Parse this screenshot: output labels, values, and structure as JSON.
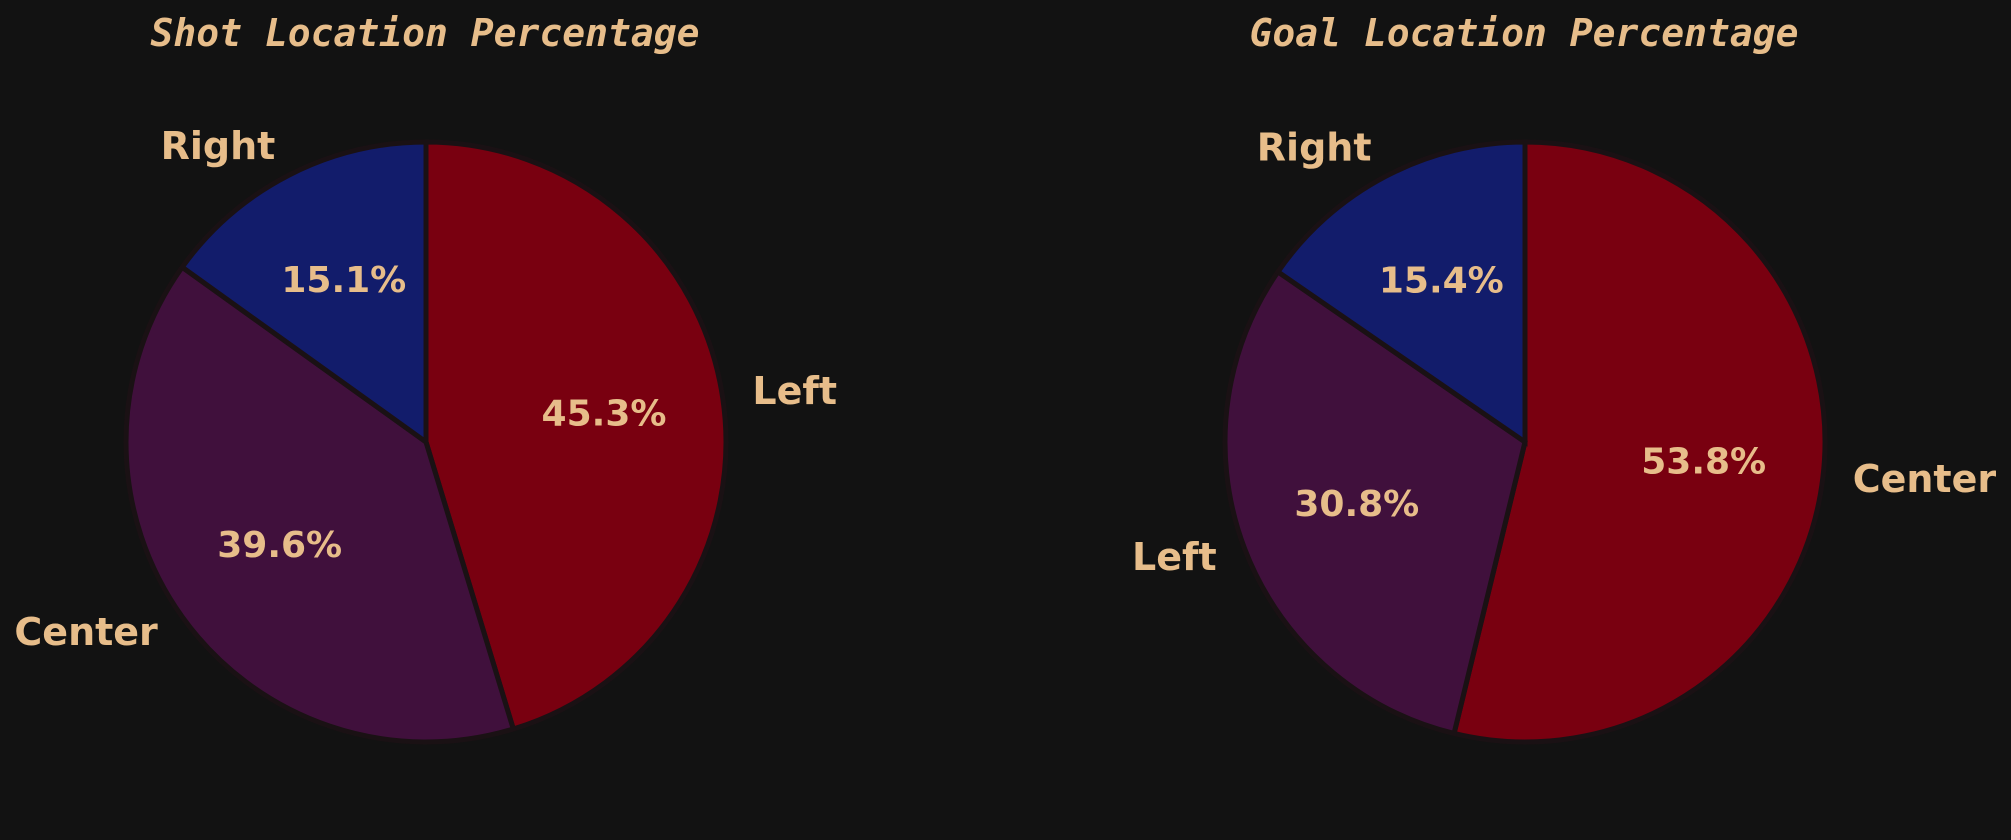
{
  "colors": {
    "background": "#121212",
    "text": "#e7bd8a",
    "edge": "#1a1114"
  },
  "chart_data": [
    {
      "type": "pie",
      "title": "Shot Location Percentage",
      "slices": [
        {
          "label": "Left",
          "value": 45.3,
          "pct_label": "45.3%",
          "color": "#790010"
        },
        {
          "label": "Center",
          "value": 39.6,
          "pct_label": "39.6%",
          "color": "#40103c"
        },
        {
          "label": "Right",
          "value": 15.1,
          "pct_label": "15.1%",
          "color": "#121c6b"
        }
      ]
    },
    {
      "type": "pie",
      "title": "Goal Location Percentage",
      "slices": [
        {
          "label": "Center",
          "value": 53.8,
          "pct_label": "53.8%",
          "color": "#790010"
        },
        {
          "label": "Left",
          "value": 30.8,
          "pct_label": "30.8%",
          "color": "#40103c"
        },
        {
          "label": "Right",
          "value": 15.4,
          "pct_label": "15.4%",
          "color": "#121c6b"
        }
      ]
    }
  ]
}
